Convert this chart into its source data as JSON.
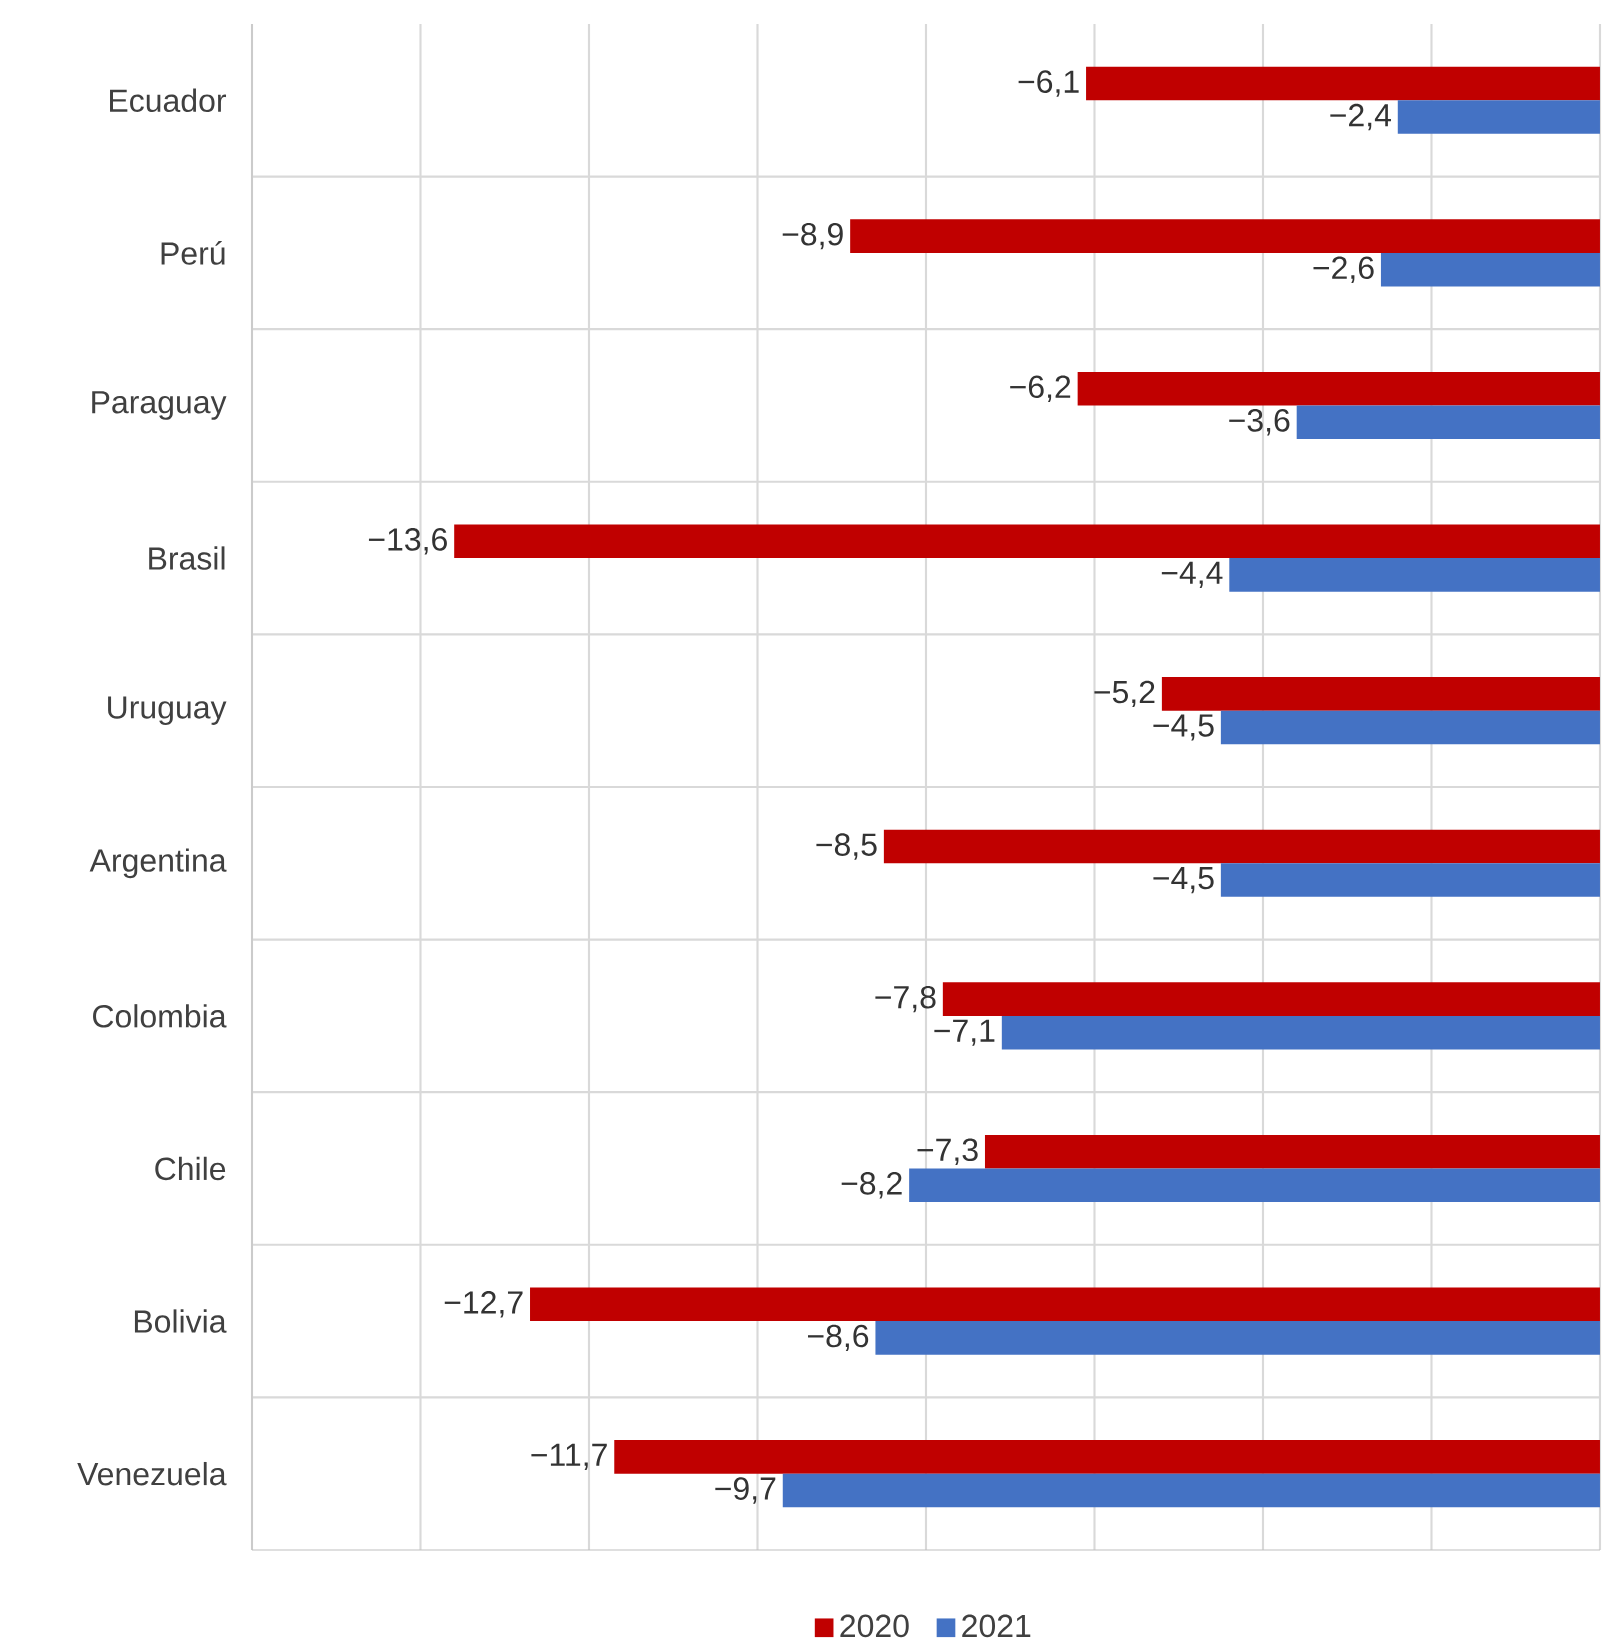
{
  "chart_data": {
    "type": "bar",
    "orientation": "horizontal",
    "categories": [
      "Ecuador",
      "Perú",
      "Paraguay",
      "Brasil",
      "Uruguay",
      "Argentina",
      "Colombia",
      "Chile",
      "Bolivia",
      "Venezuela"
    ],
    "series": [
      {
        "name": "2020",
        "color": "#c00000",
        "values": [
          -6.1,
          -8.9,
          -6.2,
          -13.6,
          -5.2,
          -8.5,
          -7.8,
          -7.3,
          -12.7,
          -11.7
        ],
        "value_labels": [
          "−6,1",
          "−8,9",
          "−6,2",
          "−13,6",
          "−5,2",
          "−8,5",
          "−7,8",
          "−7,3",
          "−12,7",
          "−11,7"
        ]
      },
      {
        "name": "2021",
        "color": "#4472c4",
        "values": [
          -2.4,
          -2.6,
          -3.6,
          -4.4,
          -4.5,
          -4.5,
          -7.1,
          -8.2,
          -8.6,
          -9.7
        ],
        "value_labels": [
          "−2,4",
          "−2,6",
          "−3,6",
          "−4,4",
          "−4,5",
          "−4,5",
          "−7,1",
          "−8,2",
          "−8,6",
          "−9,7"
        ]
      }
    ],
    "xlim": [
      -16,
      0
    ],
    "xticks": [
      {
        "value": -16,
        "label": null
      },
      {
        "value": -14,
        "label": null
      },
      {
        "value": -12,
        "label": null
      },
      {
        "value": -10,
        "label": null
      },
      {
        "value": -8,
        "label": null
      },
      {
        "value": -6,
        "label": null
      },
      {
        "value": -4,
        "label": null
      },
      {
        "value": -2,
        "label": null
      },
      {
        "value": 0,
        "label": null
      }
    ],
    "tick_labels": "y",
    "grid": true,
    "legend": "bottom"
  }
}
